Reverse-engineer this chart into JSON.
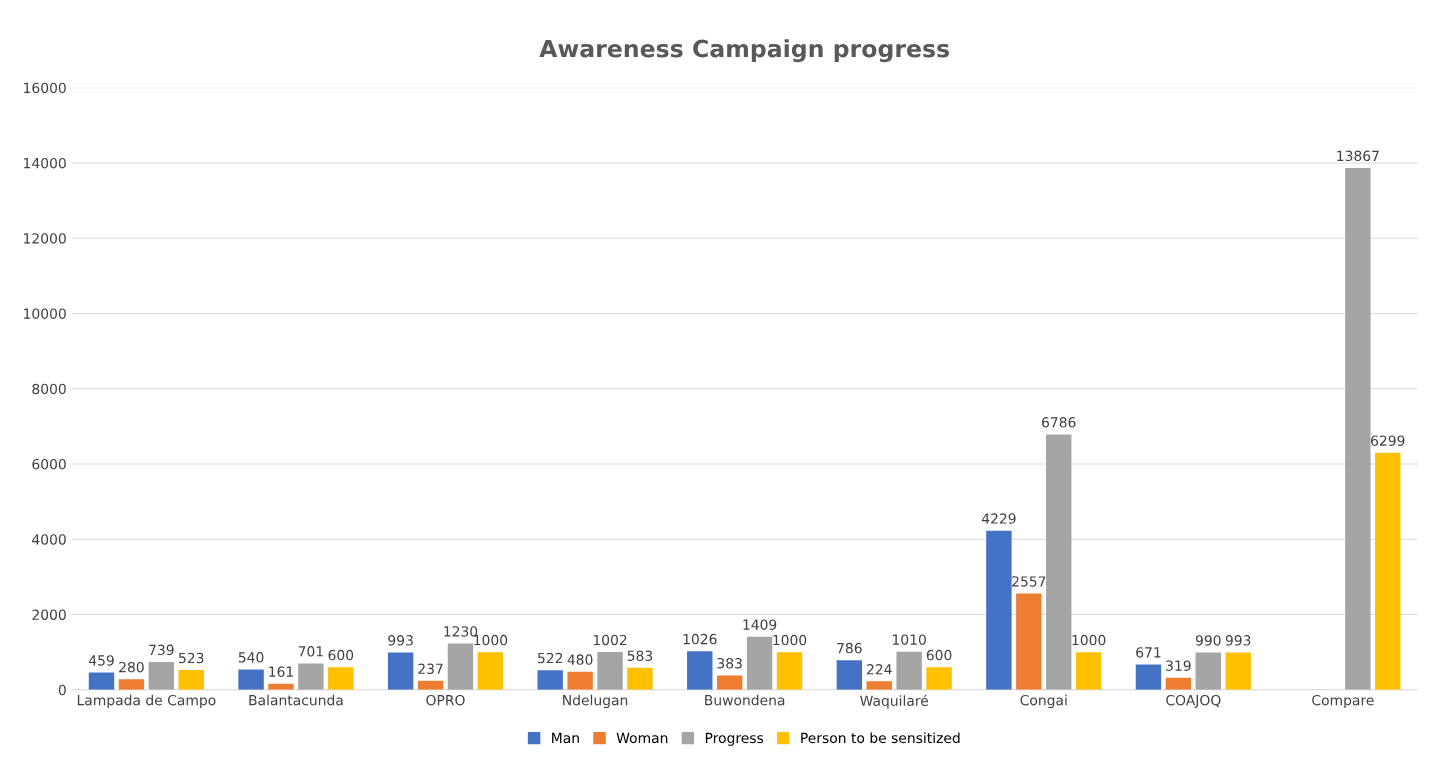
{
  "chart_data": {
    "type": "bar",
    "title": "Awareness Campaign progress",
    "categories": [
      "Lampada de Campo",
      "Balantacunda",
      "OPRO",
      "Ndelugan",
      "Buwondena",
      "Waquilaré",
      "Congai",
      "COAJOQ",
      "Compare"
    ],
    "series": [
      {
        "name": "Man",
        "color": "#4472c4",
        "values": [
          459,
          540,
          993,
          522,
          1026,
          786,
          4229,
          671,
          null
        ]
      },
      {
        "name": "Woman",
        "color": "#ed7d31",
        "values": [
          280,
          161,
          237,
          480,
          383,
          224,
          2557,
          319,
          null
        ]
      },
      {
        "name": "Progress",
        "color": "#a5a5a5",
        "values": [
          739,
          701,
          1230,
          1002,
          1409,
          1010,
          6786,
          990,
          13867
        ]
      },
      {
        "name": "Person to be sensitized",
        "color": "#ffc000",
        "values": [
          523,
          600,
          1000,
          583,
          1000,
          600,
          1000,
          993,
          6299
        ]
      }
    ],
    "ylim": [
      0,
      16000
    ],
    "yticks": [
      0,
      2000,
      4000,
      6000,
      8000,
      10000,
      12000,
      14000,
      16000
    ],
    "grid": "y",
    "legend": "bottom",
    "data_labels": true
  }
}
